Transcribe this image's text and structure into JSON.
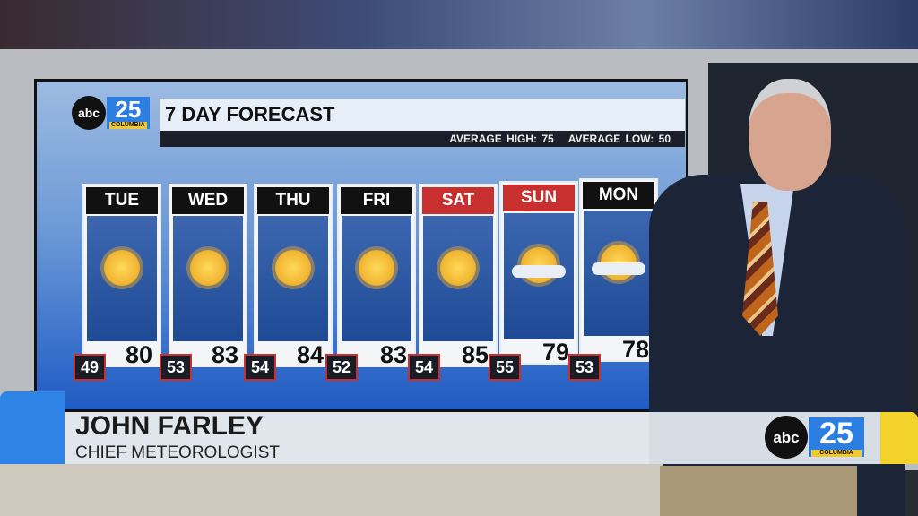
{
  "station": {
    "network": "abc",
    "channel": "25",
    "city": "COLUMBIA"
  },
  "forecast": {
    "title": "7 DAY FORECAST",
    "average_high": "AVERAGE HIGH: 75",
    "average_low": "AVERAGE LOW: 50",
    "days": [
      {
        "day": "TUE",
        "high": "80",
        "low": "49",
        "icon": "sunny-icon",
        "weekend": false
      },
      {
        "day": "WED",
        "high": "83",
        "low": "53",
        "icon": "sunny-icon",
        "weekend": false
      },
      {
        "day": "THU",
        "high": "84",
        "low": "54",
        "icon": "sunny-icon",
        "weekend": false
      },
      {
        "day": "FRI",
        "high": "83",
        "low": "52",
        "icon": "sunny-icon",
        "weekend": false
      },
      {
        "day": "SAT",
        "high": "85",
        "low": "54",
        "icon": "sunny-icon",
        "weekend": true
      },
      {
        "day": "SUN",
        "high": "79",
        "low": "55",
        "icon": "partly-cloudy-icon",
        "weekend": true
      },
      {
        "day": "MON",
        "high": "78",
        "low": "53",
        "icon": "partly-cloudy-icon",
        "weekend": false
      }
    ]
  },
  "lower_third": {
    "name": "JOHN FARLEY",
    "role": "CHIEF METEOROLOGIST"
  },
  "colors": {
    "weekend_header": "#c8302f",
    "brand_blue": "#2c7ee0",
    "brand_yellow": "#f3d22a"
  }
}
